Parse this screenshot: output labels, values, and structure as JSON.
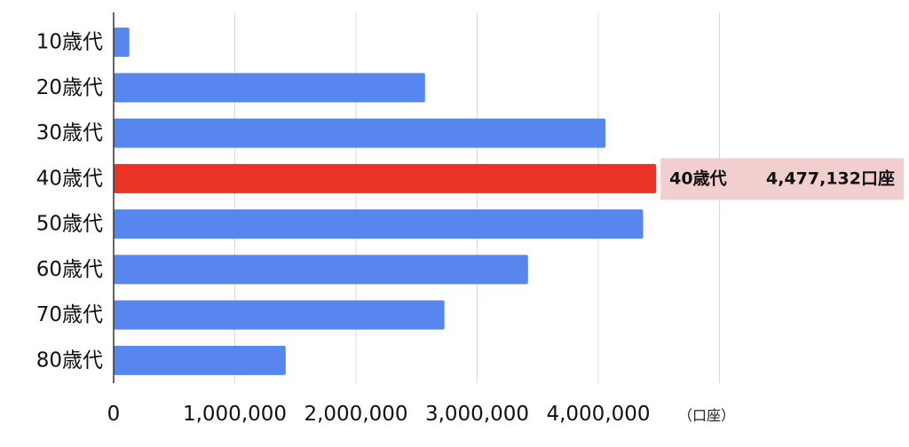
{
  "chart_data": {
    "type": "bar",
    "orientation": "horizontal",
    "categories": [
      "10歳代",
      "20歳代",
      "30歳代",
      "40歳代",
      "50歳代",
      "60歳代",
      "70歳代",
      "80歳代"
    ],
    "values": [
      130000,
      2570000,
      4060000,
      4477132,
      4370000,
      3420000,
      2730000,
      1420000
    ],
    "xlim": [
      0,
      5000000
    ],
    "xticks": [
      "0",
      "1,000,000",
      "2,000,000",
      "3,000,000",
      "4,000,000"
    ],
    "xtick_values": [
      0,
      1000000,
      2000000,
      3000000,
      4000000
    ],
    "unit_label": "（口座）",
    "grid": true,
    "highlight_index": 3,
    "colors": {
      "bar": "#5686EE",
      "highlight": "#EA3325",
      "callout_bg": "#F1CFCF",
      "grid": "#D9D9D9",
      "axis": "#333333"
    },
    "callout": {
      "category": "40歳代",
      "value_text": "4,477,132口座"
    }
  }
}
